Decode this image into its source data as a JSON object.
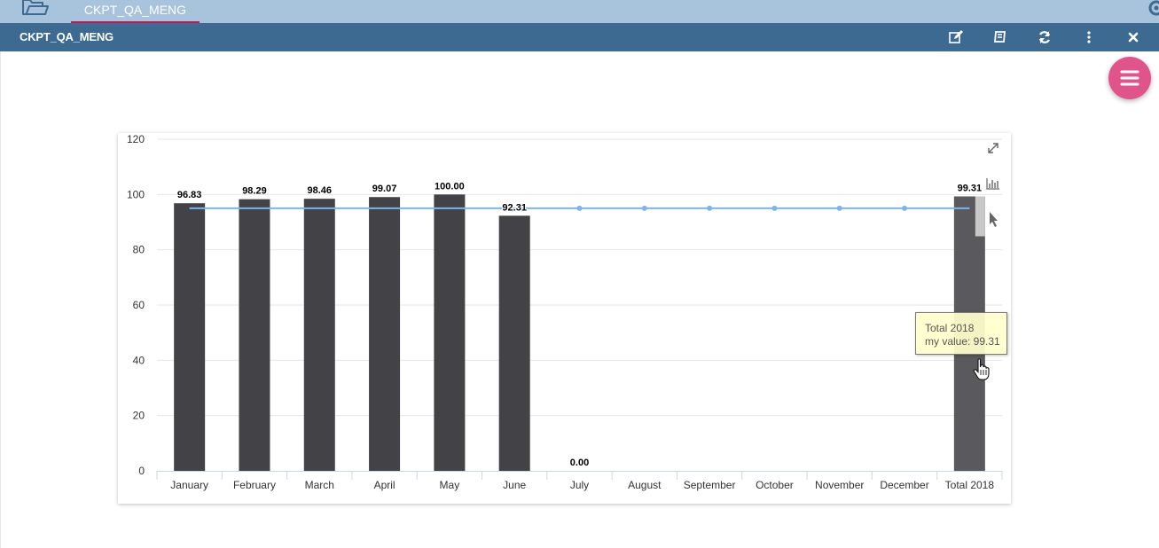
{
  "tabbar": {
    "tab_label": "CKPT_QA_MENG",
    "icon": "folder-open-icon"
  },
  "header": {
    "title": "CKPT_QA_MENG",
    "buttons": [
      "edit-icon",
      "book-icon",
      "refresh-icon",
      "more-vertical-icon",
      "close-icon"
    ]
  },
  "fab": {
    "icon": "menu-icon",
    "color": "#e0538b"
  },
  "colors": {
    "bar": "#434347",
    "total_bar": "#5a5a5e",
    "target_line": "#7cb5ec",
    "titlebar": "#3d6a91",
    "tabbar": "#a8c3dc"
  },
  "chart_data": {
    "type": "bar",
    "categories": [
      "January",
      "February",
      "March",
      "April",
      "May",
      "June",
      "July",
      "August",
      "September",
      "October",
      "November",
      "December",
      "Total 2018"
    ],
    "series": [
      {
        "name": "my value",
        "type": "bar",
        "values": [
          96.83,
          98.29,
          98.46,
          99.07,
          100.0,
          92.31,
          0.0,
          null,
          null,
          null,
          null,
          null,
          99.31
        ]
      },
      {
        "type": "line",
        "values": [
          95,
          95,
          95,
          95,
          95,
          95,
          95,
          95,
          95,
          95,
          95,
          95,
          95
        ]
      }
    ],
    "data_labels": [
      "96.83",
      "98.29",
      "98.46",
      "99.07",
      "100.00",
      "92.31",
      "0.00",
      "",
      "",
      "",
      "",
      "",
      "99.31"
    ],
    "y_ticks": [
      "0",
      "20",
      "40",
      "60",
      "80",
      "100",
      "120"
    ],
    "ylim": [
      0,
      120
    ],
    "grid": true
  },
  "tooltip": {
    "title": "Total 2018",
    "line": "my value: 99.31"
  },
  "chart_icons": [
    "expand-icon",
    "chart-type-icon",
    "pointer-icon"
  ]
}
